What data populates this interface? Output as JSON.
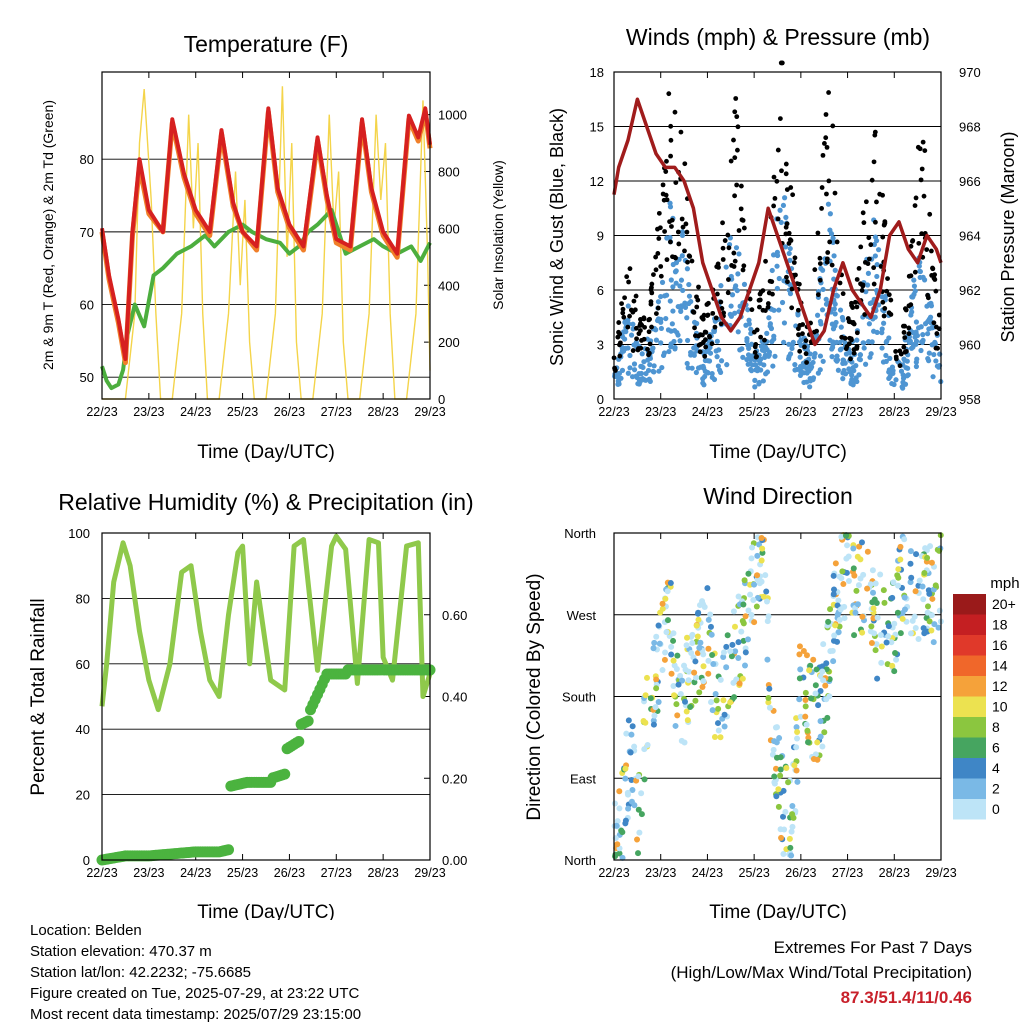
{
  "colors": {
    "temp_9m": "#d62020",
    "temp_2m": "#f07f2a",
    "dewpoint": "#4cae3e",
    "solar": "#f4d44a",
    "wind": "#4e95d2",
    "gust": "#000000",
    "pressure": "#a01c1c",
    "rh": "#8fc94b",
    "precip": "#4bb33f"
  },
  "charts": {
    "temperature": {
      "title": "Temperature (F)",
      "xlabel": "Time (Day/UTC)",
      "ylabel_left": "2m & 9m T (Red, Orange) & 2m Td (Green)",
      "ylabel_right": "Solar Insolation (Yellow)"
    },
    "winds": {
      "title": "Winds (mph) & Pressure (mb)",
      "xlabel": "Time (Day/UTC)",
      "ylabel_left": "Sonic Wind & Gust (Blue, Black)",
      "ylabel_right": "Station Pressure (Maroon)"
    },
    "humidity": {
      "title": "Relative Humidity (%) & Precipitation (in)",
      "xlabel": "Time (Day/UTC)",
      "ylabel_left": "Percent & Total Rainfall"
    },
    "direction": {
      "title": "Wind Direction",
      "xlabel": "Time (Day/UTC)",
      "ylabel_left": "Direction (Colored By Speed)",
      "legend_title": "mph"
    }
  },
  "chart_data": [
    {
      "type": "line",
      "id": "temperature",
      "x_ticks": [
        "22/23",
        "23/23",
        "24/23",
        "25/23",
        "26/23",
        "27/23",
        "28/23",
        "29/23"
      ],
      "xlim": [
        0,
        7
      ],
      "ylim": [
        47,
        92
      ],
      "y_ticks": [
        50,
        60,
        70,
        80
      ],
      "ylim_right": [
        0,
        1150
      ],
      "y_ticks_right": [
        0,
        200,
        400,
        600,
        800,
        1000
      ],
      "series": [
        {
          "x": [
            0,
            0.15,
            0.35,
            0.5,
            0.65,
            0.8,
            1.0,
            1.3,
            1.5,
            1.75,
            2.0,
            2.3,
            2.55,
            2.8,
            3.0,
            3.3,
            3.55,
            3.75,
            4.0,
            4.3,
            4.6,
            4.8,
            5.0,
            5.3,
            5.55,
            5.75,
            6.0,
            6.3,
            6.55,
            6.75,
            6.9,
            7.0
          ],
          "values": [
            70.5,
            64,
            58,
            52.5,
            70,
            80,
            73,
            70,
            85.5,
            78,
            73,
            70,
            84,
            74,
            70,
            68,
            87,
            76,
            71,
            68,
            83,
            75,
            69,
            68,
            85.5,
            76,
            70,
            67,
            86,
            83,
            87,
            82
          ]
        },
        {
          "x": [
            0,
            0.15,
            0.35,
            0.5,
            0.65,
            0.8,
            1.0,
            1.3,
            1.5,
            1.75,
            2.0,
            2.3,
            2.55,
            2.8,
            3.0,
            3.3,
            3.55,
            3.75,
            4.0,
            4.3,
            4.6,
            4.8,
            5.0,
            5.3,
            5.55,
            5.75,
            6.0,
            6.3,
            6.55,
            6.75,
            6.9,
            7.0
          ],
          "values": [
            70,
            63.5,
            57.5,
            52,
            69.5,
            79,
            72.5,
            70,
            85,
            77.5,
            72.5,
            69.5,
            83.5,
            73.5,
            70,
            67.5,
            86.5,
            75.5,
            70.5,
            67.5,
            82.5,
            74.5,
            68.5,
            67.5,
            85,
            75.5,
            69.5,
            66.5,
            85.5,
            82.5,
            86.5,
            81.5
          ]
        },
        {
          "x": [
            0,
            0.1,
            0.2,
            0.35,
            0.45,
            0.55,
            0.7,
            0.9,
            1.1,
            1.3,
            1.6,
            1.9,
            2.2,
            2.4,
            2.7,
            3.0,
            3.2,
            3.5,
            3.8,
            4.0,
            4.2,
            4.4,
            4.6,
            4.9,
            5.2,
            5.5,
            5.8,
            6.0,
            6.3,
            6.6,
            6.8,
            7.0
          ],
          "values": [
            51.5,
            49.5,
            48.5,
            49,
            51,
            56,
            60,
            57,
            64,
            65,
            67,
            68,
            69.5,
            68,
            70,
            71,
            70,
            69,
            68.5,
            67,
            68,
            70,
            71,
            73,
            67,
            68,
            69,
            68,
            67,
            68,
            66,
            68.5
          ]
        },
        {
          "x": [
            0,
            0.25,
            0.5,
            0.7,
            0.8,
            0.9,
            1.05,
            1.15,
            1.25,
            1.5,
            1.7,
            1.85,
            1.95,
            2.05,
            2.15,
            2.25,
            2.5,
            2.7,
            2.85,
            2.95,
            3.05,
            3.15,
            3.25,
            3.5,
            3.7,
            3.85,
            3.95,
            4.05,
            4.15,
            4.25,
            4.5,
            4.7,
            4.85,
            4.95,
            5.05,
            5.15,
            5.25,
            5.5,
            5.7,
            5.85,
            5.95,
            6.05,
            6.15,
            6.25,
            6.5,
            6.7,
            6.85,
            6.95,
            7.0
          ],
          "values": [
            0,
            0,
            0,
            300,
            900,
            1090,
            700,
            300,
            0,
            0,
            300,
            1000,
            600,
            900,
            300,
            0,
            0,
            300,
            800,
            400,
            700,
            200,
            0,
            0,
            300,
            1100,
            500,
            900,
            200,
            0,
            0,
            300,
            1000,
            600,
            800,
            200,
            0,
            0,
            300,
            1000,
            700,
            900,
            300,
            0,
            0,
            300,
            1050,
            500,
            100
          ]
        }
      ]
    },
    {
      "type": "scatter",
      "id": "winds",
      "x_ticks": [
        "22/23",
        "23/23",
        "24/23",
        "25/23",
        "26/23",
        "27/23",
        "28/23",
        "29/23"
      ],
      "xlim": [
        0,
        7
      ],
      "ylim": [
        0,
        18
      ],
      "y_ticks": [
        0,
        3,
        6,
        9,
        12,
        15,
        18
      ],
      "ylim_right": [
        958,
        970
      ],
      "y_ticks_right": [
        958,
        960,
        962,
        964,
        966,
        968,
        970
      ],
      "series": [
        {
          "x": [
            0,
            0.3,
            0.6,
            0.8,
            1.0,
            1.2,
            1.5,
            1.7,
            1.9,
            2.1,
            2.3,
            2.6,
            2.8,
            3.0,
            3.2,
            3.4,
            3.6,
            3.8,
            4.0,
            4.2,
            4.4,
            4.6,
            4.8,
            5.0,
            5.2,
            5.4,
            5.6,
            5.8,
            6.0,
            6.2,
            6.4,
            6.6,
            6.8,
            7.0
          ],
          "values": [
            1.5,
            4,
            2,
            3,
            5,
            9,
            7,
            4,
            2,
            3,
            5,
            8,
            5,
            2,
            3,
            6,
            10,
            6,
            3,
            2,
            5,
            9,
            5,
            2,
            3,
            6,
            8,
            5,
            1.5,
            2,
            5,
            7,
            4,
            2
          ]
        },
        {
          "x": [
            0,
            0.3,
            0.6,
            0.8,
            1.0,
            1.2,
            1.5,
            1.7,
            1.9,
            2.1,
            2.3,
            2.6,
            2.8,
            3.0,
            3.2,
            3.4,
            3.6,
            3.8,
            4.0,
            4.2,
            4.4,
            4.6,
            4.8,
            5.0,
            5.2,
            5.4,
            5.6,
            5.8,
            6.0,
            6.2,
            6.4,
            6.6,
            6.8,
            7.0
          ],
          "values": [
            3,
            7,
            4,
            6,
            11,
            16,
            13,
            8,
            4,
            6,
            9,
            16,
            9,
            4,
            6,
            11,
            18,
            11,
            5,
            4,
            10,
            17,
            9,
            4,
            6,
            11,
            14,
            9,
            3,
            4,
            9,
            16,
            8,
            4
          ]
        },
        {
          "x": [
            0,
            0.1,
            0.3,
            0.5,
            0.7,
            0.9,
            1.1,
            1.3,
            1.5,
            1.7,
            1.9,
            2.1,
            2.3,
            2.5,
            2.7,
            2.9,
            3.1,
            3.3,
            3.5,
            3.7,
            3.9,
            4.1,
            4.3,
            4.5,
            4.7,
            4.9,
            5.1,
            5.3,
            5.5,
            5.7,
            5.9,
            6.1,
            6.3,
            6.5,
            6.7,
            6.9,
            7.0
          ],
          "values": [
            965.5,
            966.5,
            967.5,
            969,
            968,
            967,
            966.5,
            966.5,
            966,
            965,
            963,
            962,
            961,
            960.5,
            961,
            962,
            963,
            965,
            964,
            963,
            962,
            961,
            960,
            960.5,
            962,
            963,
            962,
            961.5,
            961,
            962,
            964,
            964.5,
            963.5,
            963,
            964,
            963.5,
            963
          ]
        }
      ]
    },
    {
      "type": "line",
      "id": "humidity",
      "x_ticks": [
        "22/23",
        "23/23",
        "24/23",
        "25/23",
        "26/23",
        "27/23",
        "28/23",
        "29/23"
      ],
      "xlim": [
        0,
        7
      ],
      "ylim": [
        0,
        100
      ],
      "y_ticks": [
        0,
        20,
        40,
        60,
        80,
        100
      ],
      "ylim_right": [
        0,
        0.8
      ],
      "y_ticks_right": [
        "0.00",
        "0.20",
        "0.40",
        "0.60"
      ],
      "series": [
        {
          "x": [
            0,
            0.1,
            0.25,
            0.45,
            0.6,
            0.8,
            1.0,
            1.2,
            1.45,
            1.7,
            1.9,
            2.1,
            2.3,
            2.5,
            2.7,
            2.9,
            3.0,
            3.15,
            3.3,
            3.6,
            3.9,
            4.1,
            4.3,
            4.6,
            4.9,
            5.0,
            5.2,
            5.45,
            5.7,
            5.9,
            6.0,
            6.2,
            6.5,
            6.75,
            6.85,
            7.0
          ],
          "values": [
            47,
            60,
            85,
            97,
            90,
            70,
            55,
            46,
            60,
            88,
            90,
            70,
            55,
            50,
            75,
            94,
            96,
            60,
            85,
            55,
            52,
            96,
            98,
            58,
            96,
            99,
            95,
            54,
            98,
            97,
            62,
            55,
            96,
            97,
            50,
            57
          ]
        },
        {
          "x": [
            0,
            0.5,
            1.0,
            1.5,
            2.0,
            2.5,
            2.7,
            2.72,
            3.1,
            3.6,
            3.62,
            3.9,
            3.92,
            4.2,
            4.22,
            4.4,
            4.42,
            4.8,
            5.2,
            5.22,
            7.0
          ],
          "values": [
            0,
            0.01,
            0.01,
            0.015,
            0.02,
            0.02,
            0.025,
            0.18,
            0.19,
            0.19,
            0.2,
            0.21,
            0.27,
            0.29,
            0.33,
            0.34,
            0.36,
            0.455,
            0.455,
            0.465,
            0.465
          ]
        }
      ]
    },
    {
      "type": "scatter",
      "id": "direction",
      "x_ticks": [
        "22/23",
        "23/23",
        "24/23",
        "25/23",
        "26/23",
        "27/23",
        "28/23",
        "29/23"
      ],
      "xlim": [
        0,
        7
      ],
      "y_tick_labels": [
        "North",
        "East",
        "South",
        "West",
        "North"
      ],
      "ylim": [
        0,
        360
      ],
      "color_scale": {
        "labels": [
          "20+",
          "18",
          "16",
          "14",
          "12",
          "10",
          "8",
          "6",
          "4",
          "2",
          "0"
        ],
        "colors": [
          "#9a1a1a",
          "#c41f22",
          "#e0392a",
          "#f0672a",
          "#f5a23a",
          "#ece250",
          "#8bc63f",
          "#46a560",
          "#3f86c6",
          "#7ab9e6",
          "#bde4f7"
        ]
      },
      "series": [
        {
          "x": [
            0.1,
            0.2,
            0.35,
            0.5,
            0.7,
            0.9,
            1.0,
            1.2,
            1.4,
            1.6,
            1.8,
            2.0,
            2.2,
            2.4,
            2.6,
            2.8,
            3.0,
            3.2,
            3.4,
            3.6,
            3.8,
            4.0,
            4.2,
            4.4,
            4.6,
            4.8,
            5.0,
            5.2,
            5.4,
            5.6,
            5.8,
            6.0,
            6.2,
            6.4,
            6.6,
            6.8,
            7.0
          ],
          "values": [
            20,
            60,
            120,
            40,
            160,
            200,
            230,
            260,
            150,
            200,
            220,
            250,
            160,
            200,
            230,
            260,
            300,
            340,
            120,
            60,
            30,
            200,
            170,
            160,
            220,
            300,
            330,
            290,
            310,
            250,
            270,
            260,
            320,
            280,
            300,
            290,
            310
          ]
        }
      ]
    }
  ],
  "footer": {
    "location": "Location: Belden",
    "elevation": "Station elevation: 470.37 m",
    "latlon": "Station lat/lon: 42.2232; -75.6685",
    "created": "Figure created on Tue, 2025-07-29, at 23:22 UTC",
    "recent": "Most recent data timestamp: 2025/07/29 23:15:00",
    "extremes_title": "Extremes For Past 7 Days",
    "extremes_subtitle": "(High/Low/Max Wind/Total Precipitation)",
    "extremes_values": "87.3/51.4/11/0.46"
  }
}
